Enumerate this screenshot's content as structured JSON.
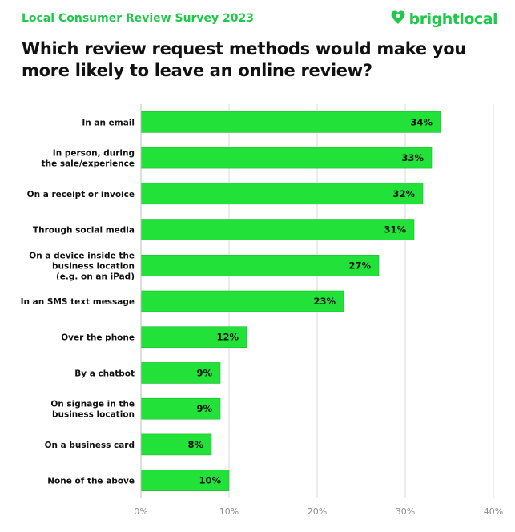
{
  "header": {
    "survey_label": "Local Consumer Review Survey 2023",
    "brand_name": "brightlocal",
    "title": "Which review request methods would make you more likely to leave an online review?"
  },
  "colors": {
    "accent": "#1fc94a",
    "bar": "#22e23a",
    "bar_border": "#17b82c",
    "text": "#111111",
    "grid": "#d9d9d9",
    "tick": "#8c8c8c"
  },
  "icons": {
    "brand_logo": "heart-pin-icon"
  },
  "chart_data": {
    "type": "bar",
    "orientation": "horizontal",
    "title": "Which review request methods would make you more likely to leave an online review?",
    "xlabel": "",
    "ylabel": "",
    "categories": [
      [
        "In an email"
      ],
      [
        "In person, during",
        "the sale/experience"
      ],
      [
        "On a receipt or invoice"
      ],
      [
        "Through social media"
      ],
      [
        "On a device inside the",
        "business location",
        "(e.g. on an iPad)"
      ],
      [
        "In an SMS text message"
      ],
      [
        "Over the phone"
      ],
      [
        "By a chatbot"
      ],
      [
        "On signage in the",
        "business location"
      ],
      [
        "On a business card"
      ],
      [
        "None of the above"
      ]
    ],
    "values": [
      34,
      33,
      32,
      31,
      27,
      23,
      12,
      9,
      9,
      8,
      10
    ],
    "value_labels": [
      "34%",
      "33%",
      "32%",
      "31%",
      "27%",
      "23%",
      "12%",
      "9%",
      "9%",
      "8%",
      "10%"
    ],
    "xlim": [
      0,
      40
    ],
    "xticks": [
      0,
      10,
      20,
      30,
      40
    ],
    "xtick_labels": [
      "0%",
      "10%",
      "20%",
      "30%",
      "40%"
    ],
    "grid": true,
    "legend": "none"
  }
}
